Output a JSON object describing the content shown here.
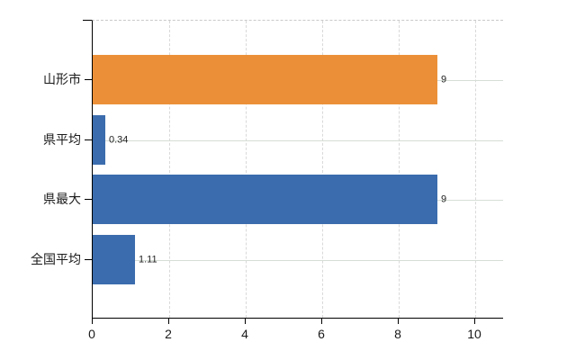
{
  "chart_data": {
    "type": "bar",
    "orientation": "horizontal",
    "title": "",
    "xlabel": "",
    "ylabel": "",
    "categories": [
      "山形市",
      "県平均",
      "県最大",
      "全国平均"
    ],
    "values": [
      9,
      0.34,
      9,
      1.11
    ],
    "value_labels": [
      "9",
      "0.34",
      "9",
      "1.11"
    ],
    "bar_colors": [
      "#EB9038",
      "#3B6CAD",
      "#3B6CAD",
      "#3B6CAD"
    ],
    "xlim": [
      0,
      10.75
    ],
    "x_ticks": [
      0,
      2,
      4,
      6,
      8,
      10
    ],
    "x_tick_labels": [
      "0",
      "2",
      "4",
      "6",
      "8",
      "10"
    ],
    "grid": true,
    "legend": false
  },
  "style": {
    "highlight_bar_color": "#EB9038",
    "default_bar_color": "#3B6CAD",
    "axis_color": "#000000",
    "vertical_gridline_color": "#d9d9d9",
    "horizontal_gridline_color": "#d6ddd6",
    "top_border_color": "#c9c9c9",
    "background_color": "#ffffff",
    "label_text_color": "#1a1a1a",
    "value_text_color": "#222222"
  }
}
